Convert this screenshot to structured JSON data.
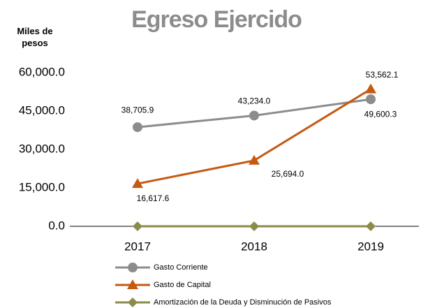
{
  "chart_data": {
    "type": "line",
    "title": "Egreso Ejercido",
    "y_label": "Miles de pesos",
    "categories": [
      "2017",
      "2018",
      "2019"
    ],
    "series": [
      {
        "name": "Gasto Corriente",
        "color": "#8c8c8c",
        "marker": "circle",
        "values": [
          38705.9,
          43234.0,
          49600.3
        ],
        "value_labels": [
          "38,705.9",
          "43,234.0",
          "49,600.3"
        ]
      },
      {
        "name": "Gasto de Capital",
        "color": "#c55a11",
        "marker": "triangle",
        "values": [
          16617.6,
          25694.0,
          53562.1
        ],
        "value_labels": [
          "16,617.6",
          "25,694.0",
          "53,562.1"
        ]
      },
      {
        "name": "Amortización de la Deuda y Disminución de Pasivos",
        "color": "#8b8b4b",
        "marker": "diamond",
        "values": [
          0,
          0,
          0
        ]
      }
    ],
    "ylim": [
      0,
      60000
    ],
    "yticks": [
      {
        "value": 0,
        "label": "0.0"
      },
      {
        "value": 15000,
        "label": "15,000.0"
      },
      {
        "value": 30000,
        "label": "30,000.0"
      },
      {
        "value": 45000,
        "label": "45,000.0"
      },
      {
        "value": 60000,
        "label": "60,000.0"
      }
    ],
    "grid": false
  }
}
